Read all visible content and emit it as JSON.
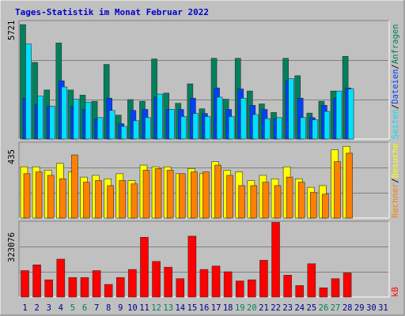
{
  "title": "Tages-Statistik im Monat Februar 2022",
  "colors": {
    "background": "#c0c0c0",
    "title": "#0000cc",
    "hits": "#00805c",
    "files": "#0040ff",
    "pages": "#00e0ff",
    "visits": "#ffff00",
    "sites": "#ff8000",
    "kbytes": "#ff0000",
    "day_weekday": "#00008b",
    "day_weekend": "#008060"
  },
  "legend_top": {
    "hits": "Anfragen",
    "files": "Dateien",
    "pages": "Seiten",
    "sep": "/"
  },
  "legend_mid": {
    "visits": "Besuche",
    "sites": "Rechner",
    "sep": "/"
  },
  "legend_bottom": {
    "kbytes": "kB"
  },
  "chart_data": [
    {
      "type": "bar",
      "panel": "top",
      "ymax_label": "5721",
      "ylim": [
        0,
        5721
      ],
      "x": [
        1,
        2,
        3,
        4,
        5,
        6,
        7,
        8,
        9,
        10,
        11,
        12,
        13,
        14,
        15,
        16,
        17,
        18,
        19,
        20,
        21,
        22,
        23,
        24,
        25,
        26,
        27,
        28
      ],
      "series": [
        {
          "name": "Anfragen",
          "values": [
            5600,
            3750,
            2400,
            4700,
            2400,
            2150,
            1850,
            3650,
            1170,
            1930,
            1850,
            3920,
            2250,
            1750,
            2700,
            1480,
            3950,
            1950,
            3950,
            2350,
            1720,
            1300,
            3950,
            3100,
            1270,
            1850,
            2350,
            4050
          ]
        },
        {
          "name": "Dateien",
          "values": [
            2000,
            1700,
            1600,
            2850,
            1600,
            1450,
            1000,
            2000,
            750,
            1400,
            1450,
            2050,
            1450,
            1450,
            2000,
            1250,
            2500,
            1450,
            2450,
            1650,
            1450,
            1000,
            2850,
            2000,
            1050,
            1650,
            2000,
            2500
          ]
        },
        {
          "name": "Seiten",
          "values": [
            4650,
            2100,
            1600,
            2550,
            1950,
            1800,
            1050,
            1400,
            620,
            900,
            1050,
            2200,
            1450,
            1100,
            1250,
            1100,
            2050,
            1100,
            2000,
            1200,
            1000,
            1050,
            2950,
            1050,
            940,
            1350,
            2350,
            2450
          ]
        }
      ]
    },
    {
      "type": "bar",
      "panel": "middle",
      "ymax_label": "435",
      "ylim": [
        0,
        435
      ],
      "x": [
        1,
        2,
        3,
        4,
        5,
        6,
        7,
        8,
        9,
        10,
        11,
        12,
        13,
        14,
        15,
        16,
        17,
        18,
        19,
        20,
        21,
        22,
        23,
        24,
        25,
        26,
        27,
        28
      ],
      "series": [
        {
          "name": "Besuche",
          "values": [
            300,
            300,
            280,
            320,
            270,
            240,
            250,
            230,
            260,
            220,
            310,
            300,
            300,
            260,
            290,
            260,
            330,
            280,
            270,
            220,
            250,
            230,
            300,
            230,
            180,
            190,
            400,
            420
          ]
        },
        {
          "name": "Rechner",
          "values": [
            260,
            270,
            250,
            230,
            370,
            210,
            220,
            190,
            220,
            200,
            280,
            290,
            280,
            260,
            270,
            270,
            310,
            250,
            190,
            190,
            210,
            190,
            240,
            210,
            150,
            140,
            330,
            380
          ]
        }
      ]
    },
    {
      "type": "bar",
      "panel": "bottom",
      "ymax_label": "323076",
      "ylim": [
        0,
        323076
      ],
      "x": [
        1,
        2,
        3,
        4,
        5,
        6,
        7,
        8,
        9,
        10,
        11,
        12,
        13,
        14,
        15,
        16,
        17,
        18,
        19,
        20,
        21,
        22,
        23,
        24,
        25,
        26,
        27,
        28
      ],
      "series": [
        {
          "name": "kB",
          "values": [
            115000,
            140000,
            75000,
            165000,
            85000,
            85000,
            115000,
            55000,
            85000,
            120000,
            260000,
            155000,
            130000,
            80000,
            265000,
            120000,
            135000,
            110000,
            70000,
            75000,
            160000,
            325000,
            95000,
            50000,
            145000,
            40000,
            80000,
            105000
          ]
        }
      ]
    }
  ],
  "x_labels": [
    "1",
    "2",
    "3",
    "4",
    "5",
    "6",
    "7",
    "8",
    "9",
    "10",
    "11",
    "12",
    "13",
    "14",
    "15",
    "16",
    "17",
    "18",
    "19",
    "20",
    "21",
    "22",
    "23",
    "24",
    "25",
    "26",
    "27",
    "28",
    "29",
    "30",
    "31"
  ],
  "weekend_days": [
    5,
    6,
    12,
    13,
    19,
    20,
    26,
    27
  ]
}
